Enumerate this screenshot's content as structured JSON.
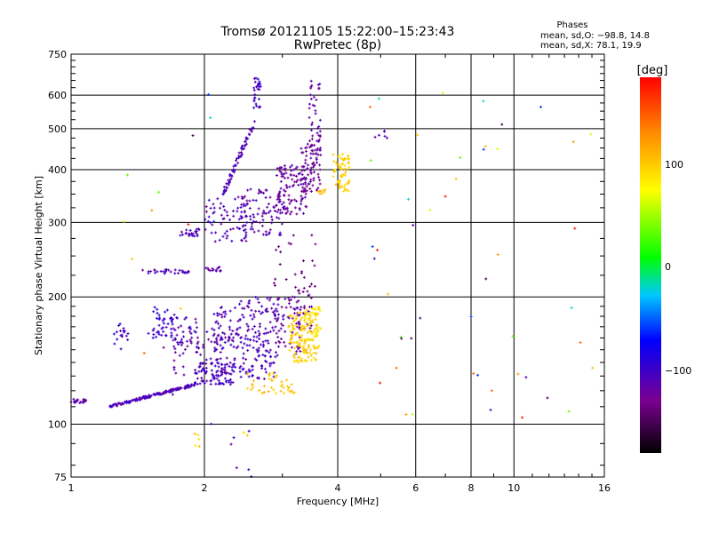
{
  "chart_data": {
    "type": "scatter",
    "title": "Tromsø 20121105 15:22:00–15:23:43",
    "subtitle": "RwPretec (8p)",
    "xlabel": "Frequency [MHz]",
    "ylabel": "Stationary phase Virtual Height [km]",
    "x_scale": "log",
    "y_scale": "log",
    "xlim": [
      1,
      16
    ],
    "ylim": [
      75,
      750
    ],
    "x_ticks": [
      1,
      2,
      4,
      6,
      8,
      10,
      16
    ],
    "y_ticks": [
      75,
      100,
      200,
      300,
      400,
      500,
      600,
      750
    ],
    "grid": true,
    "phases_box": {
      "title": "Phases",
      "line1": "mean, sd,O: −98.8, 14.8",
      "line2": "mean, sd,X:  78.1, 19.9"
    },
    "colorbar": {
      "label": "[deg]",
      "min": -180,
      "max": 180,
      "ticks": [
        100,
        0,
        -100
      ],
      "tick_labels": [
        "100",
        "0",
        "−100"
      ]
    },
    "series": [
      {
        "clusters": [
          {
            "x": [
              1.0,
              1.08
            ],
            "y": [
              112,
              115
            ],
            "n": 22,
            "phase": -115
          },
          {
            "x": [
              1.22,
              1.9
            ],
            "y": [
              110,
              124
            ],
            "n": 160,
            "phase": -108,
            "curve": true
          },
          {
            "x": [
              1.9,
              2.35
            ],
            "y": [
              124,
              140
            ],
            "n": 80,
            "phase": -105
          },
          {
            "x": [
              1.25,
              1.35
            ],
            "y": [
              150,
              175
            ],
            "n": 18,
            "phase": -100
          },
          {
            "x": [
              1.48,
              1.72
            ],
            "y": [
              160,
              190
            ],
            "n": 35,
            "phase": -95
          },
          {
            "x": [
              1.6,
              1.95
            ],
            "y": [
              150,
              180
            ],
            "n": 40,
            "phase": -110
          },
          {
            "x": [
              1.7,
              2.35
            ],
            "y": [
              130,
              170
            ],
            "n": 90,
            "phase": -112
          },
          {
            "x": [
              2.1,
              2.4
            ],
            "y": [
              150,
              190
            ],
            "n": 50,
            "phase": -110
          },
          {
            "x": [
              2.4,
              2.9
            ],
            "y": [
              128,
              200
            ],
            "n": 150,
            "phase": -108
          },
          {
            "x": [
              2.9,
              3.3
            ],
            "y": [
              145,
              200
            ],
            "n": 70,
            "phase": -120
          },
          {
            "x": [
              3.2,
              3.5
            ],
            "y": [
              165,
              215
            ],
            "n": 30,
            "phase": -128
          },
          {
            "x": [
              1.45,
              1.85
            ],
            "y": [
              227,
              232
            ],
            "n": 30,
            "phase": -110
          },
          {
            "x": [
              2.0,
              2.2
            ],
            "y": [
              230,
              236
            ],
            "n": 14,
            "phase": -118
          },
          {
            "x": [
              1.75,
              1.95
            ],
            "y": [
              278,
              290
            ],
            "n": 25,
            "phase": -110
          },
          {
            "x": [
              2.0,
              2.5
            ],
            "y": [
              270,
              345
            ],
            "n": 70,
            "phase": -112
          },
          {
            "x": [
              2.45,
              3.0
            ],
            "y": [
              280,
              360
            ],
            "n": 80,
            "phase": -115
          },
          {
            "x": [
              2.9,
              3.4
            ],
            "y": [
              310,
              410
            ],
            "n": 110,
            "phase": -120
          },
          {
            "x": [
              3.3,
              3.65
            ],
            "y": [
              350,
              460
            ],
            "n": 80,
            "phase": -125
          },
          {
            "x": [
              2.2,
              2.6
            ],
            "y": [
              350,
              520
            ],
            "n": 70,
            "phase": -108,
            "curve": true
          },
          {
            "x": [
              2.58,
              2.68
            ],
            "y": [
              560,
              660
            ],
            "n": 30,
            "phase": -105
          },
          {
            "x": [
              3.45,
              3.66
            ],
            "y": [
              420,
              650
            ],
            "n": 40,
            "phase": -115
          },
          {
            "x": [
              2.8,
              3.6
            ],
            "y": [
              205,
              280
            ],
            "n": 22,
            "phase": -135
          },
          {
            "x": [
              2.2,
              2.6
            ],
            "y": [
              75,
              100
            ],
            "n": 6,
            "phase": -110
          },
          {
            "x": [
              3.1,
              3.6
            ],
            "y": [
              140,
              185
            ],
            "n": 110,
            "phase": 95
          },
          {
            "x": [
              3.35,
              3.66
            ],
            "y": [
              150,
              190
            ],
            "n": 60,
            "phase": 90
          },
          {
            "x": [
              2.5,
              3.2
            ],
            "y": [
              118,
              132
            ],
            "n": 40,
            "phase": 100
          },
          {
            "x": [
              3.9,
              4.25
            ],
            "y": [
              355,
              440
            ],
            "n": 60,
            "phase": 95
          },
          {
            "x": [
              3.6,
              3.75
            ],
            "y": [
              350,
              360
            ],
            "n": 8,
            "phase": 105
          },
          {
            "x": [
              1.9,
              1.95
            ],
            "y": [
              88,
              95
            ],
            "n": 5,
            "phase": 95
          },
          {
            "x": [
              2.45,
              2.52
            ],
            "y": [
              93,
              96
            ],
            "n": 3,
            "phase": 90
          },
          {
            "x": [
              4.8,
              5.2
            ],
            "y": [
              475,
              500
            ],
            "n": 6,
            "phase": -110
          },
          {
            "x": [
              4.7,
              10.5
            ],
            "y": [
              100,
              620
            ],
            "n": 38,
            "phase": 0,
            "sparse": true
          },
          {
            "x": [
              1.2,
              2.2
            ],
            "y": [
              90,
              650
            ],
            "n": 14,
            "phase": 0,
            "sparse": true
          },
          {
            "x": [
              10.5,
              15.5
            ],
            "y": [
              100,
              630
            ],
            "n": 10,
            "phase": 0,
            "sparse": true
          }
        ]
      }
    ]
  }
}
